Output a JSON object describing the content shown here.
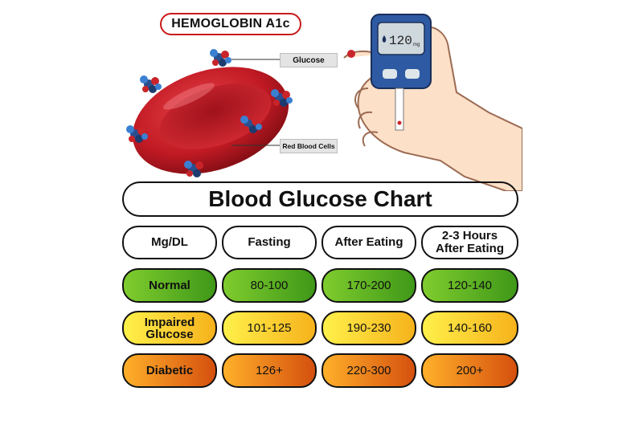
{
  "hemoglobin_title": "HEMOGLOBIN A1c",
  "cell_labels": {
    "glucose": "Glucose",
    "red_blood_cells": "Red Blood Cells"
  },
  "meter": {
    "reading": "120",
    "unit": "mg"
  },
  "chart": {
    "title": "Blood Glucose Chart",
    "headers": [
      "Mg/DL",
      "Fasting",
      "After Eating",
      "2-3 Hours\nAfter Eating"
    ],
    "rows": [
      {
        "label": "Normal",
        "values": [
          "80-100",
          "170-200",
          "120-140"
        ],
        "color": "#5cb324"
      },
      {
        "label": "Impaired\nGlucose",
        "values": [
          "101-125",
          "190-230",
          "140-160"
        ],
        "color": "#fbd336"
      },
      {
        "label": "Diabetic",
        "values": [
          "126+",
          "220-300",
          "200+"
        ],
        "color": "#ea7d1b"
      }
    ]
  }
}
